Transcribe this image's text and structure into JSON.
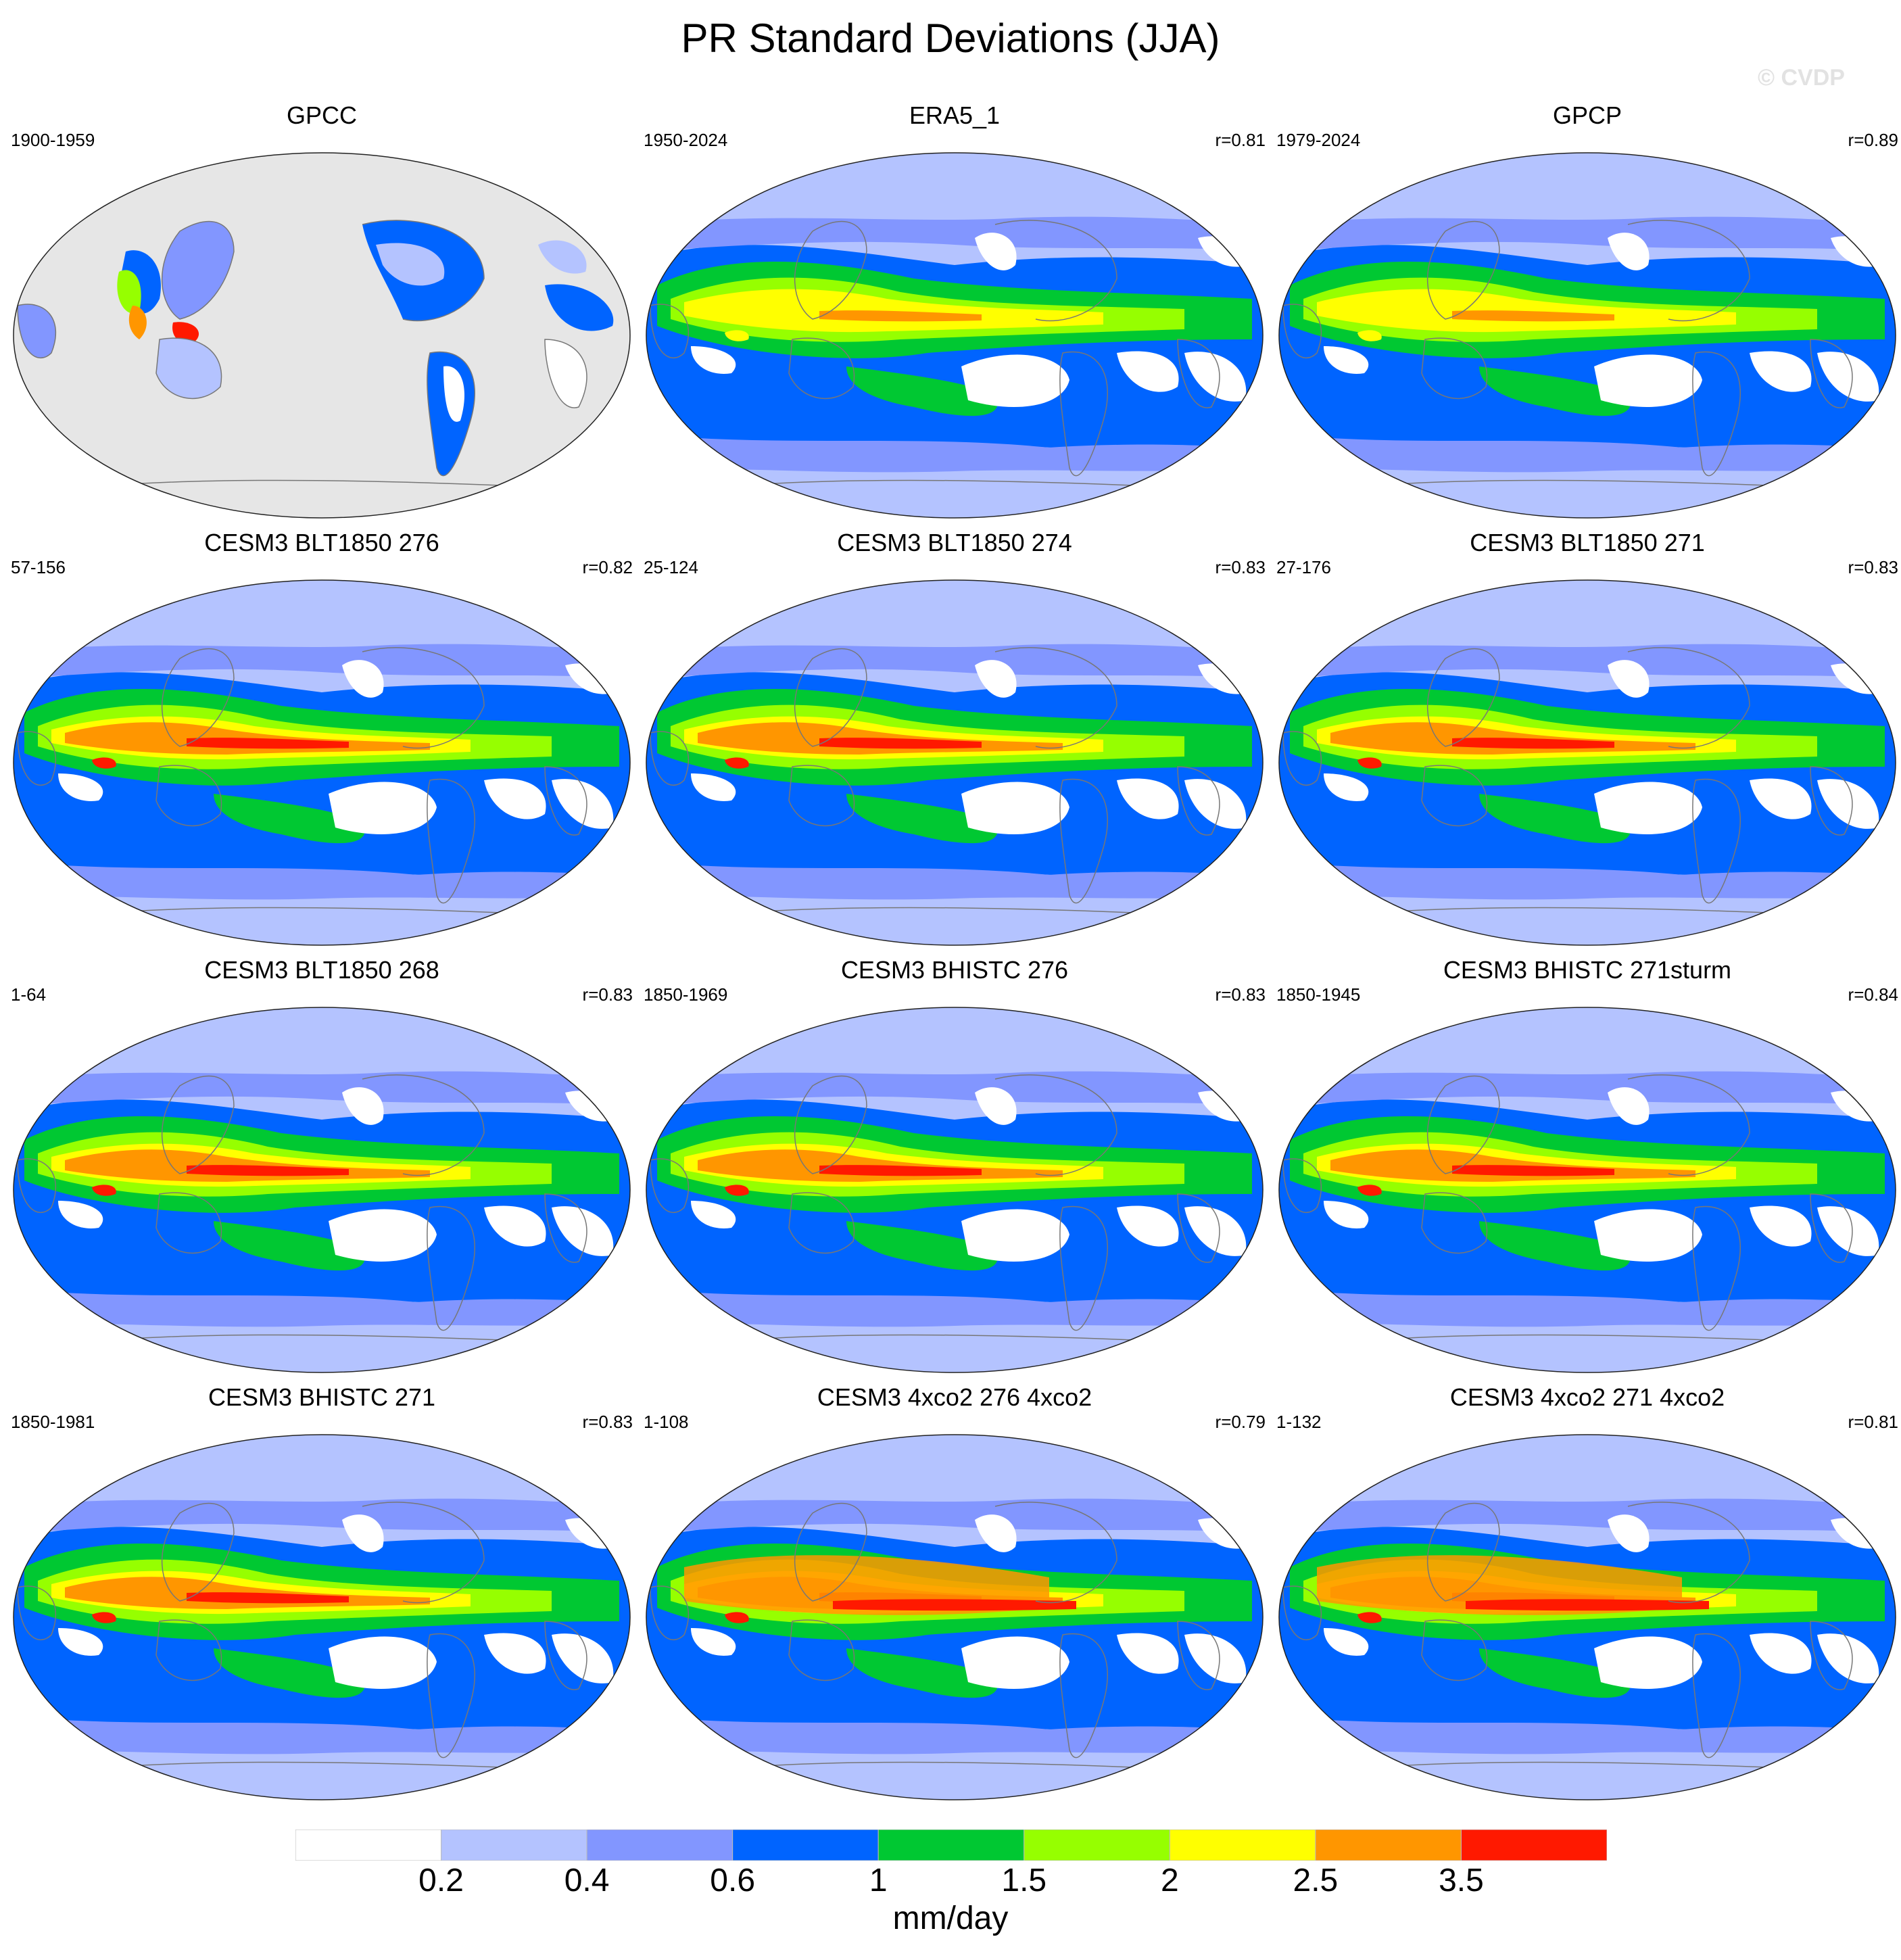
{
  "figure": {
    "title": "PR Standard Deviations (JJA)",
    "watermark": "© CVDP"
  },
  "panels": [
    {
      "title": "GPCC",
      "left_label": "1900-1959",
      "right_label": "",
      "style": "land"
    },
    {
      "title": "ERA5_1",
      "left_label": "1950-2024",
      "right_label": "r=0.81",
      "style": "obs"
    },
    {
      "title": "GPCP",
      "left_label": "1979-2024",
      "right_label": "r=0.89",
      "style": "obs"
    },
    {
      "title": "CESM3 BLT1850 276",
      "left_label": "57-156",
      "right_label": "r=0.82",
      "style": "model"
    },
    {
      "title": "CESM3 BLT1850 274",
      "left_label": "25-124",
      "right_label": "r=0.83",
      "style": "model"
    },
    {
      "title": "CESM3 BLT1850 271",
      "left_label": "27-176",
      "right_label": "r=0.83",
      "style": "model"
    },
    {
      "title": "CESM3 BLT1850 268",
      "left_label": "1-64",
      "right_label": "r=0.83",
      "style": "model"
    },
    {
      "title": "CESM3 BHISTC 276",
      "left_label": "1850-1969",
      "right_label": "r=0.83",
      "style": "model"
    },
    {
      "title": "CESM3 BHISTC 271sturm",
      "left_label": "1850-1945",
      "right_label": "r=0.84",
      "style": "model"
    },
    {
      "title": "CESM3 BHISTC 271",
      "left_label": "1850-1981",
      "right_label": "r=0.83",
      "style": "model"
    },
    {
      "title": "CESM3 4xco2 276 4xco2",
      "left_label": "1-108",
      "right_label": "r=0.79",
      "style": "warm"
    },
    {
      "title": "CESM3 4xco2 271 4xco2",
      "left_label": "1-132",
      "right_label": "r=0.81",
      "style": "warm"
    }
  ],
  "colorbar": {
    "units": "mm/day",
    "colors": [
      "#ffffff",
      "#b4c3ff",
      "#8296ff",
      "#0064ff",
      "#00c832",
      "#96ff00",
      "#ffff00",
      "#ff9600",
      "#ff1900"
    ],
    "labels": [
      "0.2",
      "0.4",
      "0.6",
      "1",
      "1.5",
      "2",
      "2.5",
      "3.5"
    ]
  },
  "colors": {
    "land_mask": "#e6e6e6",
    "coastline": "#777777",
    "map_border": "#222222"
  }
}
